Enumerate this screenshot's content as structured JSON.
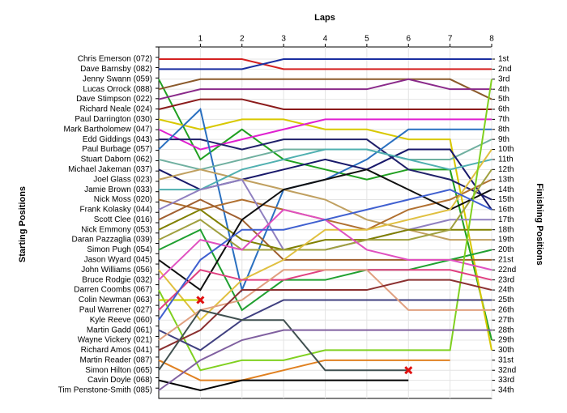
{
  "chart_data": {
    "type": "bump",
    "title": "Laps",
    "y_label": "Starting Positions",
    "y2_label": "Finishing Positions",
    "x": [
      0,
      1,
      2,
      3,
      4,
      5,
      6,
      7,
      8
    ],
    "xlim": [
      0,
      8
    ],
    "xticks": [
      1,
      2,
      3,
      4,
      5,
      6,
      7,
      8
    ],
    "ylim": [
      1,
      34
    ],
    "yticks": [
      {
        "value": 1,
        "label": "1st"
      },
      {
        "value": 2,
        "label": "2nd"
      },
      {
        "value": 3,
        "label": "3rd"
      },
      {
        "value": 4,
        "label": "4th"
      },
      {
        "value": 5,
        "label": "5th"
      },
      {
        "value": 6,
        "label": "6th"
      },
      {
        "value": 7,
        "label": "7th"
      },
      {
        "value": 8,
        "label": "8th"
      },
      {
        "value": 9,
        "label": "9th"
      },
      {
        "value": 10,
        "label": "10th"
      },
      {
        "value": 11,
        "label": "11th"
      },
      {
        "value": 12,
        "label": "12th"
      },
      {
        "value": 13,
        "label": "13th"
      },
      {
        "value": 14,
        "label": "14th"
      },
      {
        "value": 15,
        "label": "15th"
      },
      {
        "value": 16,
        "label": "16th"
      },
      {
        "value": 17,
        "label": "17th"
      },
      {
        "value": 18,
        "label": "18th"
      },
      {
        "value": 19,
        "label": "19th"
      },
      {
        "value": 20,
        "label": "20th"
      },
      {
        "value": 21,
        "label": "21st"
      },
      {
        "value": 22,
        "label": "22nd"
      },
      {
        "value": 23,
        "label": "23rd"
      },
      {
        "value": 24,
        "label": "24th"
      },
      {
        "value": 25,
        "label": "25th"
      },
      {
        "value": 26,
        "label": "26th"
      },
      {
        "value": 27,
        "label": "27th"
      },
      {
        "value": 28,
        "label": "28th"
      },
      {
        "value": 29,
        "label": "29th"
      },
      {
        "value": 30,
        "label": "30th"
      },
      {
        "value": 31,
        "label": "31st"
      },
      {
        "value": 32,
        "label": "32nd"
      },
      {
        "value": 33,
        "label": "33rd"
      },
      {
        "value": 34,
        "label": "34th"
      }
    ],
    "grid": true,
    "series": [
      {
        "name": "Chris Emerson (072)",
        "color": "#d42020",
        "values": [
          1,
          1,
          1,
          2,
          2,
          2,
          2,
          2,
          2
        ]
      },
      {
        "name": "Dave Barnsby (082)",
        "color": "#1a2ea0",
        "values": [
          2,
          2,
          2,
          1,
          1,
          1,
          1,
          1,
          1
        ]
      },
      {
        "name": "Jenny Swann (059)",
        "color": "#20a020",
        "values": [
          3,
          11,
          8,
          11,
          12,
          13,
          12,
          12,
          29
        ]
      },
      {
        "name": "Lucas Orrock (088)",
        "color": "#8b5a2b",
        "values": [
          4,
          3,
          3,
          3,
          3,
          3,
          3,
          3,
          5
        ]
      },
      {
        "name": "Dave Stimpson (022)",
        "color": "#8a2a8a",
        "values": [
          5,
          4,
          4,
          4,
          4,
          4,
          3,
          4,
          4
        ]
      },
      {
        "name": "Richard Neale (024)",
        "color": "#8b1a1a",
        "values": [
          6,
          5,
          5,
          6,
          6,
          6,
          6,
          6,
          6
        ]
      },
      {
        "name": "Paul Darrington (030)",
        "color": "#d8c800",
        "values": [
          7,
          8,
          7,
          7,
          8,
          8,
          9,
          9,
          30
        ]
      },
      {
        "name": "Mark Bartholomew (047)",
        "color": "#e020d0",
        "values": [
          8,
          10,
          9,
          8,
          7,
          7,
          7,
          7,
          7
        ]
      },
      {
        "name": "Edd Giddings (043)",
        "color": "#20206a",
        "values": [
          9,
          9,
          10,
          9,
          9,
          9,
          12,
          13,
          15
        ]
      },
      {
        "name": "Paul Burbage (057)",
        "color": "#2a70c0",
        "values": [
          10,
          6,
          24,
          14,
          13,
          11,
          8,
          8,
          8
        ]
      },
      {
        "name": "Stuart Daborn (062)",
        "color": "#70b0a0",
        "values": [
          11,
          12,
          11,
          10,
          10,
          10,
          11,
          11,
          9
        ]
      },
      {
        "name": "Michael Jakeman (037)",
        "color": "#18186a",
        "values": [
          12,
          14,
          13,
          12,
          11,
          12,
          10,
          10,
          16
        ]
      },
      {
        "name": "Joel Glass (023)",
        "color": "#c0a060",
        "values": [
          13,
          12,
          13,
          14,
          15,
          17,
          18,
          19,
          19
        ]
      },
      {
        "name": "Jamie Brown (033)",
        "color": "#50b0b0",
        "values": [
          14,
          14,
          12,
          11,
          10,
          10,
          11,
          12,
          11
        ]
      },
      {
        "name": "Nick Moss (020)",
        "color": "#b07030",
        "values": [
          15,
          16,
          15,
          16,
          17,
          18,
          16,
          15,
          13
        ]
      },
      {
        "name": "Frank Kolasky (044)",
        "color": "#9080c0",
        "values": [
          16,
          14,
          13,
          20,
          20,
          19,
          18,
          17,
          17
        ]
      },
      {
        "name": "Scott Clee (016)",
        "color": "#a06030",
        "values": [
          17,
          15,
          17,
          21,
          21,
          21,
          21,
          21,
          21
        ]
      },
      {
        "name": "Nick Emmony (053)",
        "color": "#808000",
        "values": [
          18,
          16,
          19,
          20,
          19,
          19,
          18,
          18,
          18
        ]
      },
      {
        "name": "Daran Pazzaglia (039)",
        "color": "#a0a040",
        "values": [
          19,
          17,
          20,
          20,
          20,
          19,
          19,
          18,
          12
        ]
      },
      {
        "name": "Simon Pugh (054)",
        "color": "#20a030",
        "values": [
          20,
          18,
          26,
          23,
          23,
          22,
          22,
          21,
          20
        ]
      },
      {
        "name": "Jason Wyard (045)",
        "color": "#101010",
        "values": [
          21,
          24,
          17,
          14,
          13,
          12,
          14,
          16,
          14
        ]
      },
      {
        "name": "John Williams (056)",
        "color": "#e0c040",
        "values": [
          22,
          27,
          23,
          21,
          18,
          18,
          17,
          16,
          10
        ]
      },
      {
        "name": "Bruce Rodgie (032)",
        "color": "#e050c0",
        "values": [
          23,
          19,
          20,
          16,
          17,
          20,
          21,
          21,
          22
        ]
      },
      {
        "name": "Darren Coombs (067)",
        "color": "#80d020",
        "values": [
          24,
          32,
          31,
          31,
          30,
          30,
          30,
          30,
          3
        ]
      },
      {
        "name": "Colin Newman (063)",
        "color": "#c0d000",
        "values": [
          25,
          25,
          null,
          null,
          null,
          null,
          null,
          null,
          null
        ],
        "retired": true
      },
      {
        "name": "Paul Warrener (027)",
        "color": "#e04080",
        "values": [
          26,
          22,
          23,
          23,
          22,
          22,
          22,
          22,
          23
        ]
      },
      {
        "name": "Kyle Reeve (060)",
        "color": "#4060d0",
        "values": [
          27,
          21,
          18,
          18,
          17,
          16,
          15,
          14,
          16
        ]
      },
      {
        "name": "Martin Gadd (061)",
        "color": "#404080",
        "values": [
          28,
          30,
          27,
          25,
          25,
          25,
          25,
          25,
          25
        ]
      },
      {
        "name": "Wayne Vickery (021)",
        "color": "#e0a080",
        "values": [
          29,
          26,
          25,
          22,
          22,
          22,
          26,
          26,
          26
        ]
      },
      {
        "name": "Richard Amos (041)",
        "color": "#8b3030",
        "values": [
          30,
          28,
          24,
          24,
          24,
          24,
          23,
          23,
          24
        ]
      },
      {
        "name": "Martin Reader (087)",
        "color": "#e08020",
        "values": [
          31,
          33,
          33,
          32,
          31,
          31,
          31,
          31,
          null
        ]
      },
      {
        "name": "Simon Hilton (065)",
        "color": "#405050",
        "values": [
          32,
          26,
          27,
          27,
          32,
          32,
          32,
          null,
          null
        ],
        "retired": true
      },
      {
        "name": "Cavin Doyle (068)",
        "color": "#000000",
        "values": [
          33,
          34,
          33,
          33,
          33,
          33,
          33,
          null,
          null
        ]
      },
      {
        "name": "Tim Penstone-Smith (085)",
        "color": "#8060a0",
        "values": [
          34,
          31,
          29,
          28,
          28,
          28,
          28,
          28,
          28
        ]
      }
    ]
  }
}
